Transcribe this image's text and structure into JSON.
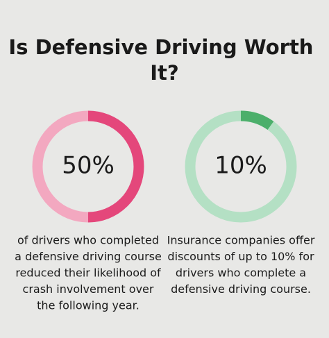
{
  "title": "Is Defensive Driving Worth It?",
  "chart_data": [
    {
      "type": "donut",
      "values": [
        50
      ],
      "value_labels": [
        "50%"
      ],
      "ylim": [
        0,
        100
      ],
      "color": "#e4477b",
      "track_color": "#f3a8c0",
      "caption": [
        "of drivers who completed",
        "a defensive driving course",
        "reduced their likelihood of",
        "crash involvement over",
        "the following year."
      ]
    },
    {
      "type": "donut",
      "values": [
        10
      ],
      "value_labels": [
        "10%"
      ],
      "ylim": [
        0,
        100
      ],
      "color": "#4caf6b",
      "track_color": "#b4e0c4",
      "caption": [
        "Insurance companies offer",
        "discounts of up to 10% for",
        "drivers who complete a",
        "defensive driving course."
      ]
    }
  ]
}
